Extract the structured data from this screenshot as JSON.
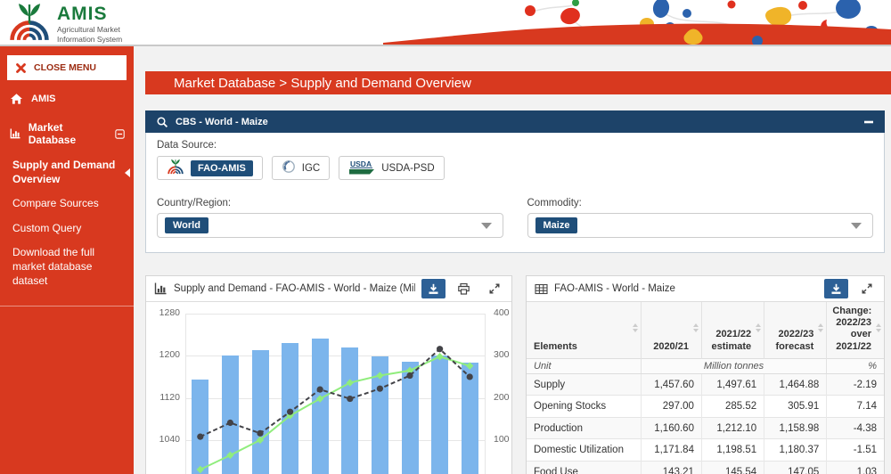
{
  "colors": {
    "accent_red": "#d8391f",
    "navy_header": "#1d4369",
    "badge_navy": "#1f4e79",
    "toolbar_button_blue": "#2d6096",
    "bar_blue": "#7cb5ec",
    "line_green": "#90ed7d",
    "line_dark": "#434348",
    "logo_green": "#1a7a3c"
  },
  "header": {
    "logo_title": "AMIS",
    "logo_subtitle": "Agricultural Market\nInformation System"
  },
  "sidebar": {
    "close_menu_label": "CLOSE MENU",
    "home_label": "AMIS",
    "section_label": "Market Database",
    "items": [
      {
        "label": "Supply and Demand Overview",
        "active": true
      },
      {
        "label": "Compare Sources",
        "active": false
      },
      {
        "label": "Custom Query",
        "active": false
      },
      {
        "label": "Download the full market database dataset",
        "active": false
      }
    ]
  },
  "breadcrumb": "Market Database > Supply and Demand Overview",
  "filters": {
    "panel_title": "CBS - World - Maize",
    "data_source_label": "Data Source:",
    "sources": [
      {
        "label": "FAO-AMIS",
        "selected": true,
        "icon": "amis-logo-icon"
      },
      {
        "label": "IGC",
        "selected": false,
        "icon": "igc-globe-icon"
      },
      {
        "label": "USDA-PSD",
        "selected": false,
        "icon": "usda-logo-icon"
      }
    ],
    "country_label": "Country/Region:",
    "country_value": "World",
    "commodity_label": "Commodity:",
    "commodity_value": "Maize"
  },
  "chart_panel": {
    "title": "Supply and Demand - FAO-AMIS - World - Maize (Million tonnes)"
  },
  "chart_data": {
    "type": "bar",
    "subtype": "combo: bars + 2 lines, dual y-axes",
    "title": "Supply and Demand - FAO-AMIS - World - Maize (Million tonnes)",
    "categories": [
      "",
      "",
      "",
      "",
      "",
      "",
      "",
      "",
      "",
      ""
    ],
    "series": [
      {
        "name": "bars-blue",
        "type": "bar",
        "y_axis": "left",
        "color": "#7cb5ec",
        "values": [
          1154,
          1201,
          1211,
          1225,
          1233,
          1216,
          1198,
          1189,
          1200,
          1187
        ]
      },
      {
        "name": "line-green-diamond-markers",
        "type": "line",
        "y_axis": "right",
        "color": "#90ed7d",
        "dash": false,
        "marker": "diamond",
        "values": [
          30,
          64,
          100,
          158,
          198,
          236,
          253,
          265,
          298,
          276
        ]
      },
      {
        "name": "line-dark-dashed-circle-markers",
        "type": "line",
        "y_axis": "right",
        "color": "#434348",
        "dash": true,
        "marker": "circle",
        "values": [
          108,
          141,
          116,
          167,
          220,
          198,
          222,
          253,
          316,
          250
        ]
      }
    ],
    "left_axis_ticks": [
      1280,
      1200,
      1120,
      1040
    ],
    "right_axis_ticks": [
      400,
      300,
      200,
      100
    ],
    "grid": true
  },
  "table_panel": {
    "title": "FAO-AMIS - World - Maize",
    "columns": [
      "Elements",
      "2020/21",
      "2021/22\nestimate",
      "2022/23\nforecast",
      "Change:\n2022/23\nover\n2021/22"
    ],
    "unit_row": [
      "Unit",
      "Million tonnes",
      "%"
    ],
    "rows": [
      [
        "Supply",
        "1,457.60",
        "1,497.61",
        "1,464.88",
        "-2.19"
      ],
      [
        "Opening Stocks",
        "297.00",
        "285.52",
        "305.91",
        "7.14"
      ],
      [
        "Production",
        "1,160.60",
        "1,212.10",
        "1,158.98",
        "-4.38"
      ],
      [
        "Domestic Utilization",
        "1,171.84",
        "1,198.51",
        "1,180.37",
        "-1.51"
      ],
      [
        "Food Use",
        "143.21",
        "145.54",
        "147.05",
        "1.03"
      ]
    ]
  }
}
